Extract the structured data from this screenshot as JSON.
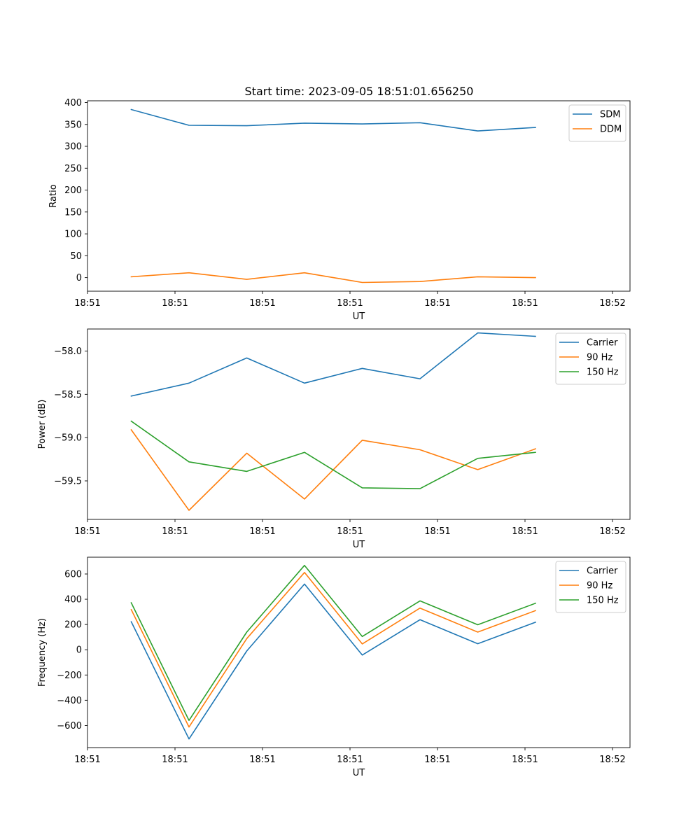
{
  "figure": {
    "title": "Start time: 2023-09-05 18:51:01.656250"
  },
  "colors": {
    "blue": "#1f77b4",
    "orange": "#ff7f0e",
    "green": "#2ca02c"
  },
  "chart_data": [
    {
      "type": "line",
      "title": "Start time: 2023-09-05 18:51:01.656250",
      "xlabel": "UT",
      "ylabel": "Ratio",
      "xlim": [
        0,
        3.1
      ],
      "xticks": [
        0.0,
        0.5,
        1.0,
        1.5,
        2.0,
        2.5,
        3.0
      ],
      "xtick_labels": [
        "18:51",
        "18:51",
        "18:51",
        "18:51",
        "18:51",
        "18:51",
        "18:52"
      ],
      "ylim": [
        -31,
        404
      ],
      "yticks": [
        0,
        50,
        100,
        150,
        200,
        250,
        300,
        350,
        400
      ],
      "ytick_labels": [
        "0",
        "50",
        "100",
        "150",
        "200",
        "250",
        "300",
        "350",
        "400"
      ],
      "x": [
        0.25,
        0.58,
        0.91,
        1.24,
        1.57,
        1.9,
        2.23,
        2.56
      ],
      "legend_position": "top-right",
      "series": [
        {
          "name": "SDM",
          "color": "#1f77b4",
          "values": [
            384,
            348,
            347,
            353,
            351,
            354,
            335,
            343
          ]
        },
        {
          "name": "DDM",
          "color": "#ff7f0e",
          "values": [
            2,
            11,
            -4,
            11,
            -11,
            -9,
            2,
            0
          ]
        }
      ]
    },
    {
      "type": "line",
      "title": "",
      "xlabel": "UT",
      "ylabel": "Power (dB)",
      "xlim": [
        0,
        3.1
      ],
      "xticks": [
        0.0,
        0.5,
        1.0,
        1.5,
        2.0,
        2.5,
        3.0
      ],
      "xtick_labels": [
        "18:51",
        "18:51",
        "18:51",
        "18:51",
        "18:51",
        "18:51",
        "18:52"
      ],
      "ylim": [
        -59.945,
        -57.745
      ],
      "yticks": [
        -59.5,
        -59.0,
        -58.5,
        -58.0
      ],
      "ytick_labels": [
        "−59.5",
        "−59.0",
        "−58.5",
        "−58.0"
      ],
      "x": [
        0.25,
        0.58,
        0.91,
        1.24,
        1.57,
        1.9,
        2.23,
        2.56
      ],
      "legend_position": "top-right",
      "series": [
        {
          "name": "Carrier",
          "color": "#1f77b4",
          "values": [
            -58.52,
            -58.37,
            -58.08,
            -58.37,
            -58.2,
            -58.32,
            -57.79,
            -57.83
          ]
        },
        {
          "name": "90 Hz",
          "color": "#ff7f0e",
          "values": [
            -58.91,
            -59.84,
            -59.18,
            -59.71,
            -59.03,
            -59.14,
            -59.37,
            -59.13
          ]
        },
        {
          "name": "150 Hz",
          "color": "#2ca02c",
          "values": [
            -58.81,
            -59.28,
            -59.39,
            -59.17,
            -59.58,
            -59.59,
            -59.24,
            -59.17
          ]
        }
      ]
    },
    {
      "type": "line",
      "title": "",
      "xlabel": "UT",
      "ylabel": "Frequency (Hz)",
      "xlim": [
        0,
        3.1
      ],
      "xticks": [
        0.0,
        0.5,
        1.0,
        1.5,
        2.0,
        2.5,
        3.0
      ],
      "xtick_labels": [
        "18:51",
        "18:51",
        "18:51",
        "18:51",
        "18:51",
        "18:51",
        "18:52"
      ],
      "ylim": [
        -775,
        733
      ],
      "yticks": [
        -600,
        -400,
        -200,
        0,
        200,
        400,
        600
      ],
      "ytick_labels": [
        "−600",
        "−400",
        "−200",
        "0",
        "200",
        "400",
        "600"
      ],
      "x": [
        0.25,
        0.58,
        0.91,
        1.24,
        1.57,
        1.9,
        2.23,
        2.56
      ],
      "legend_position": "top-right",
      "series": [
        {
          "name": "Carrier",
          "color": "#1f77b4",
          "values": [
            222,
            -707,
            -10,
            520,
            -42,
            238,
            48,
            218
          ]
        },
        {
          "name": "90 Hz",
          "color": "#ff7f0e",
          "values": [
            318,
            -612,
            88,
            612,
            46,
            330,
            140,
            310
          ]
        },
        {
          "name": "150 Hz",
          "color": "#2ca02c",
          "values": [
            372,
            -560,
            140,
            668,
            105,
            387,
            198,
            368
          ]
        }
      ]
    }
  ]
}
